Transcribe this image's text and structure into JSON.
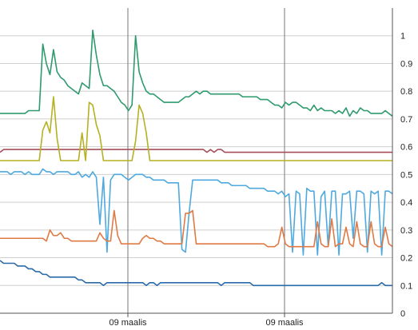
{
  "chart_data": {
    "type": "line",
    "title": "",
    "xlabel": "",
    "ylabel": "",
    "ylim": [
      0,
      1.1
    ],
    "y_axis_side": "right",
    "yticks": [
      0,
      0.1,
      0.2,
      0.3,
      0.4,
      0.5,
      0.6,
      0.7,
      0.8,
      0.9,
      1
    ],
    "ytick_labels": [
      "0",
      "0.1",
      "0.2",
      "0.3",
      "0.4",
      "0.5",
      "0.6",
      "0.7",
      "0.8",
      "0.9",
      "1"
    ],
    "xtick_labels": [
      "09 maalis",
      "09 maalis"
    ],
    "grid": true,
    "legend": "none",
    "series": [
      {
        "color": "#2e9a6e",
        "values": [
          0.72,
          0.72,
          0.72,
          0.72,
          0.72,
          0.72,
          0.72,
          0.72,
          0.73,
          0.73,
          0.73,
          0.73,
          0.97,
          0.9,
          0.86,
          0.95,
          0.87,
          0.85,
          0.84,
          0.82,
          0.81,
          0.8,
          0.79,
          0.83,
          0.82,
          0.81,
          1.02,
          0.93,
          0.86,
          0.82,
          0.82,
          0.81,
          0.8,
          0.78,
          0.76,
          0.75,
          0.73,
          0.75,
          1.0,
          0.87,
          0.83,
          0.8,
          0.79,
          0.79,
          0.78,
          0.77,
          0.76,
          0.76,
          0.76,
          0.76,
          0.76,
          0.77,
          0.78,
          0.78,
          0.79,
          0.8,
          0.79,
          0.8,
          0.8,
          0.79,
          0.79,
          0.79,
          0.79,
          0.79,
          0.79,
          0.79,
          0.79,
          0.79,
          0.78,
          0.78,
          0.78,
          0.78,
          0.78,
          0.77,
          0.77,
          0.77,
          0.76,
          0.75,
          0.75,
          0.74,
          0.76,
          0.75,
          0.76,
          0.76,
          0.75,
          0.74,
          0.74,
          0.73,
          0.75,
          0.73,
          0.74,
          0.73,
          0.73,
          0.73,
          0.72,
          0.73,
          0.72,
          0.74,
          0.71,
          0.73,
          0.72,
          0.74,
          0.73,
          0.73,
          0.72,
          0.72,
          0.72,
          0.72,
          0.73,
          0.72,
          0.71
        ]
      },
      {
        "color": "#a64f5a",
        "values": [
          0.58,
          0.59,
          0.59,
          0.59,
          0.59,
          0.59,
          0.59,
          0.59,
          0.59,
          0.59,
          0.59,
          0.59,
          0.59,
          0.59,
          0.59,
          0.59,
          0.59,
          0.59,
          0.59,
          0.59,
          0.59,
          0.59,
          0.59,
          0.59,
          0.59,
          0.59,
          0.59,
          0.59,
          0.59,
          0.59,
          0.59,
          0.59,
          0.59,
          0.59,
          0.59,
          0.59,
          0.59,
          0.59,
          0.59,
          0.59,
          0.59,
          0.59,
          0.59,
          0.59,
          0.59,
          0.59,
          0.59,
          0.59,
          0.59,
          0.59,
          0.59,
          0.59,
          0.59,
          0.59,
          0.59,
          0.59,
          0.59,
          0.59,
          0.58,
          0.59,
          0.58,
          0.59,
          0.59,
          0.58,
          0.58,
          0.58,
          0.58,
          0.58,
          0.58,
          0.58,
          0.58,
          0.58,
          0.58,
          0.58,
          0.58,
          0.58,
          0.58,
          0.58,
          0.58,
          0.58,
          0.58,
          0.58,
          0.58,
          0.58,
          0.58,
          0.58,
          0.58,
          0.58,
          0.58,
          0.58,
          0.58,
          0.58,
          0.58,
          0.58,
          0.58,
          0.58,
          0.58,
          0.58,
          0.58,
          0.58,
          0.58,
          0.58,
          0.58,
          0.58,
          0.58,
          0.58,
          0.58,
          0.58,
          0.58,
          0.58,
          0.58
        ]
      },
      {
        "color": "#b5b121",
        "values": [
          0.55,
          0.55,
          0.55,
          0.55,
          0.55,
          0.55,
          0.55,
          0.55,
          0.55,
          0.55,
          0.55,
          0.55,
          0.66,
          0.69,
          0.65,
          0.78,
          0.63,
          0.55,
          0.55,
          0.55,
          0.55,
          0.55,
          0.55,
          0.65,
          0.55,
          0.76,
          0.75,
          0.68,
          0.64,
          0.55,
          0.55,
          0.55,
          0.55,
          0.55,
          0.55,
          0.55,
          0.55,
          0.55,
          0.62,
          0.75,
          0.72,
          0.65,
          0.55,
          0.55,
          0.55,
          0.55,
          0.55,
          0.55,
          0.55,
          0.55,
          0.55,
          0.55,
          0.55,
          0.55,
          0.55,
          0.55,
          0.55,
          0.55,
          0.55,
          0.55,
          0.55,
          0.55,
          0.55,
          0.55,
          0.55,
          0.55,
          0.55,
          0.55,
          0.55,
          0.55,
          0.55,
          0.55,
          0.55,
          0.55,
          0.55,
          0.55,
          0.55,
          0.55,
          0.55,
          0.55,
          0.55,
          0.55,
          0.55,
          0.55,
          0.55,
          0.55,
          0.55,
          0.55,
          0.55,
          0.55,
          0.55,
          0.55,
          0.55,
          0.55,
          0.55,
          0.55,
          0.55,
          0.55,
          0.55,
          0.55,
          0.55,
          0.55,
          0.55,
          0.55,
          0.55,
          0.55,
          0.55,
          0.55,
          0.55,
          0.55,
          0.55
        ]
      },
      {
        "color": "#4ea9de",
        "values": [
          0.51,
          0.51,
          0.51,
          0.5,
          0.51,
          0.51,
          0.51,
          0.5,
          0.51,
          0.5,
          0.5,
          0.5,
          0.52,
          0.51,
          0.51,
          0.5,
          0.51,
          0.51,
          0.51,
          0.51,
          0.5,
          0.5,
          0.51,
          0.49,
          0.5,
          0.49,
          0.51,
          0.49,
          0.32,
          0.49,
          0.22,
          0.48,
          0.5,
          0.5,
          0.5,
          0.49,
          0.48,
          0.49,
          0.5,
          0.5,
          0.5,
          0.49,
          0.49,
          0.48,
          0.48,
          0.48,
          0.48,
          0.47,
          0.47,
          0.47,
          0.47,
          0.23,
          0.22,
          0.36,
          0.48,
          0.48,
          0.48,
          0.48,
          0.48,
          0.48,
          0.48,
          0.48,
          0.47,
          0.47,
          0.47,
          0.46,
          0.46,
          0.46,
          0.46,
          0.46,
          0.45,
          0.45,
          0.45,
          0.45,
          0.45,
          0.44,
          0.44,
          0.44,
          0.43,
          0.44,
          0.42,
          0.43,
          0.22,
          0.44,
          0.43,
          0.21,
          0.45,
          0.44,
          0.44,
          0.21,
          0.42,
          0.44,
          0.24,
          0.44,
          0.44,
          0.21,
          0.43,
          0.43,
          0.44,
          0.27,
          0.44,
          0.44,
          0.43,
          0.22,
          0.44,
          0.43,
          0.44,
          0.21,
          0.44,
          0.44,
          0.43
        ]
      },
      {
        "color": "#e07a45",
        "values": [
          0.27,
          0.27,
          0.27,
          0.27,
          0.27,
          0.27,
          0.27,
          0.27,
          0.27,
          0.27,
          0.27,
          0.27,
          0.27,
          0.26,
          0.3,
          0.28,
          0.28,
          0.29,
          0.27,
          0.27,
          0.26,
          0.26,
          0.26,
          0.26,
          0.26,
          0.26,
          0.26,
          0.26,
          0.29,
          0.27,
          0.26,
          0.26,
          0.37,
          0.28,
          0.25,
          0.25,
          0.25,
          0.25,
          0.25,
          0.25,
          0.27,
          0.28,
          0.27,
          0.27,
          0.26,
          0.26,
          0.25,
          0.25,
          0.25,
          0.25,
          0.25,
          0.25,
          0.36,
          0.36,
          0.37,
          0.25,
          0.25,
          0.25,
          0.25,
          0.25,
          0.25,
          0.25,
          0.25,
          0.25,
          0.25,
          0.25,
          0.25,
          0.25,
          0.25,
          0.25,
          0.25,
          0.25,
          0.25,
          0.25,
          0.25,
          0.24,
          0.24,
          0.24,
          0.25,
          0.31,
          0.25,
          0.24,
          0.24,
          0.24,
          0.24,
          0.24,
          0.24,
          0.24,
          0.24,
          0.33,
          0.25,
          0.24,
          0.24,
          0.34,
          0.24,
          0.25,
          0.25,
          0.31,
          0.25,
          0.24,
          0.33,
          0.25,
          0.24,
          0.24,
          0.33,
          0.25,
          0.24,
          0.24,
          0.31,
          0.25,
          0.24
        ]
      },
      {
        "color": "#2a6aa9",
        "values": [
          0.19,
          0.18,
          0.18,
          0.18,
          0.18,
          0.17,
          0.17,
          0.17,
          0.16,
          0.16,
          0.15,
          0.15,
          0.14,
          0.14,
          0.13,
          0.13,
          0.13,
          0.13,
          0.13,
          0.13,
          0.13,
          0.13,
          0.12,
          0.12,
          0.11,
          0.11,
          0.11,
          0.11,
          0.11,
          0.1,
          0.11,
          0.11,
          0.11,
          0.11,
          0.11,
          0.11,
          0.11,
          0.11,
          0.11,
          0.11,
          0.11,
          0.1,
          0.11,
          0.11,
          0.1,
          0.11,
          0.11,
          0.11,
          0.11,
          0.11,
          0.11,
          0.11,
          0.11,
          0.11,
          0.11,
          0.11,
          0.11,
          0.11,
          0.11,
          0.11,
          0.11,
          0.11,
          0.1,
          0.11,
          0.11,
          0.11,
          0.11,
          0.11,
          0.11,
          0.11,
          0.11,
          0.1,
          0.1,
          0.1,
          0.1,
          0.1,
          0.1,
          0.1,
          0.1,
          0.1,
          0.1,
          0.1,
          0.1,
          0.1,
          0.1,
          0.1,
          0.1,
          0.1,
          0.1,
          0.1,
          0.1,
          0.1,
          0.1,
          0.1,
          0.1,
          0.1,
          0.1,
          0.1,
          0.1,
          0.1,
          0.1,
          0.1,
          0.1,
          0.1,
          0.1,
          0.1,
          0.1,
          0.11,
          0.1,
          0.1,
          0.1
        ]
      }
    ]
  }
}
